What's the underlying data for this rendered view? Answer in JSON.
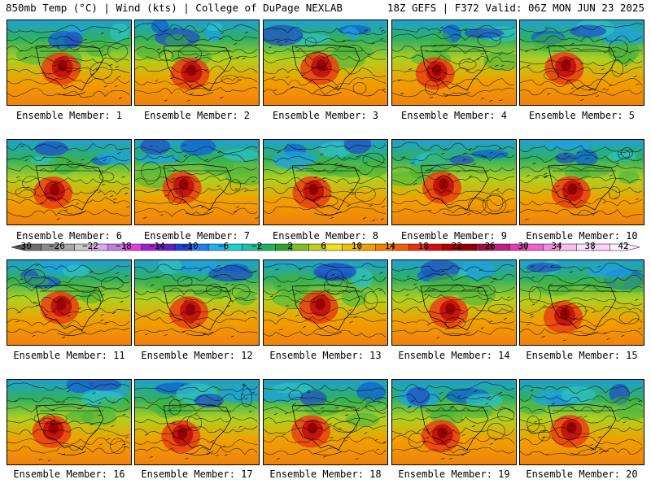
{
  "header": {
    "left_title": "850mb Temp (°C) | Wind (kts) | College of DuPage NEXLAB",
    "right_title": "18Z GEFS | F372 Valid: 06Z MON JUN 23 2025"
  },
  "panels": [
    {
      "label": "Ensemble Member: 1"
    },
    {
      "label": "Ensemble Member: 2"
    },
    {
      "label": "Ensemble Member: 3"
    },
    {
      "label": "Ensemble Member: 4"
    },
    {
      "label": "Ensemble Member: 5"
    },
    {
      "label": "Ensemble Member: 6"
    },
    {
      "label": "Ensemble Member: 7"
    },
    {
      "label": "Ensemble Member: 8"
    },
    {
      "label": "Ensemble Member: 9"
    },
    {
      "label": "Ensemble Member: 10"
    },
    {
      "label": "Ensemble Member: 11"
    },
    {
      "label": "Ensemble Member: 12"
    },
    {
      "label": "Ensemble Member: 13"
    },
    {
      "label": "Ensemble Member: 14"
    },
    {
      "label": "Ensemble Member: 15"
    },
    {
      "label": "Ensemble Member: 16"
    },
    {
      "label": "Ensemble Member: 17"
    },
    {
      "label": "Ensemble Member: 18"
    },
    {
      "label": "Ensemble Member: 19"
    },
    {
      "label": "Ensemble Member: 20"
    }
  ],
  "colorbar": {
    "labels": [
      "−30",
      "−26",
      "−22",
      "−18",
      "−14",
      "−10",
      "−6",
      "−2",
      "2",
      "6",
      "10",
      "14",
      "18",
      "22",
      "26",
      "30",
      "34",
      "38",
      "42"
    ],
    "colors": [
      "#6e6e6e",
      "#8c8c8c",
      "#a8a8a8",
      "#c8c8c8",
      "#d8a8e8",
      "#c080e0",
      "#e040e0",
      "#a020d0",
      "#6020c0",
      "#2040d0",
      "#2080f0",
      "#20b0f0",
      "#20d0d0",
      "#20c0a0",
      "#20b060",
      "#30a030",
      "#80c020",
      "#c0d020",
      "#f0e020",
      "#f0c000",
      "#f0a000",
      "#f08000",
      "#f06000",
      "#e83010",
      "#d01010",
      "#b00000",
      "#900000",
      "#a01040",
      "#c02080",
      "#e040b0",
      "#f060d0",
      "#f090e0",
      "#f8c0f0",
      "#ffe0ff",
      "#ffd0ff",
      "#fff0ff"
    ]
  }
}
